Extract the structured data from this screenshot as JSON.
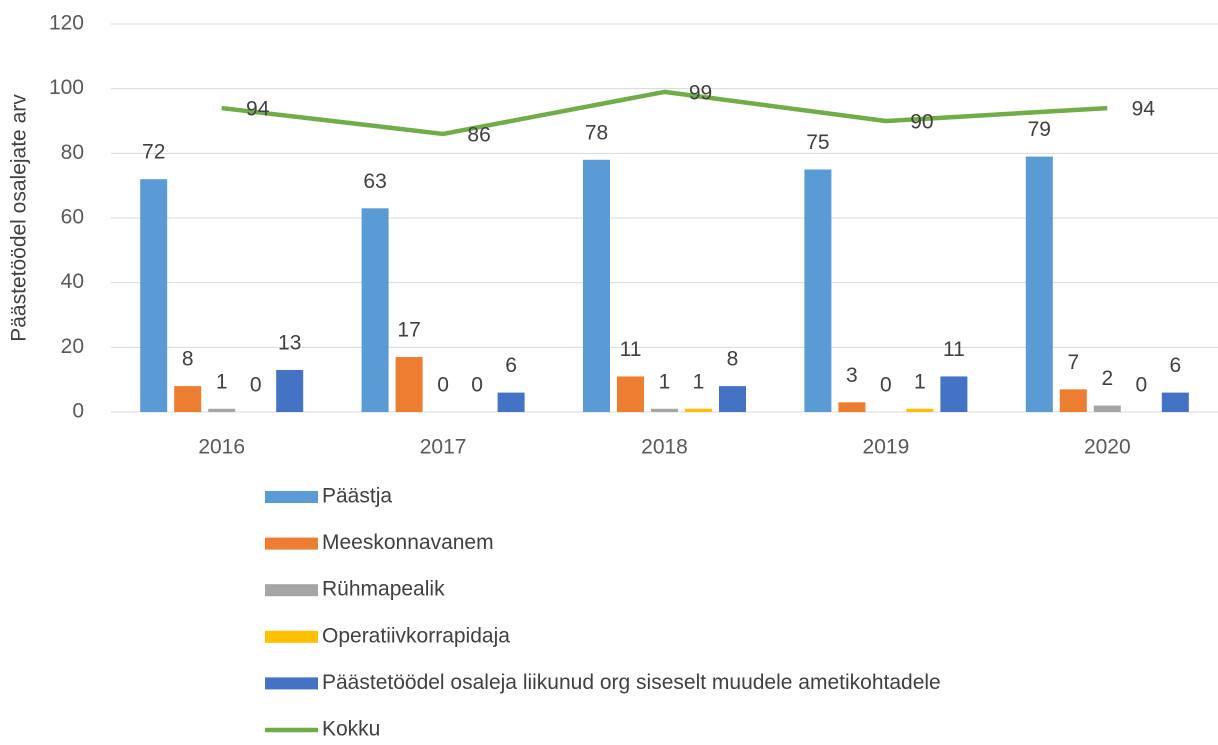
{
  "chart_data": {
    "type": "bar",
    "y_label": "Päästetöödel osalejate arv",
    "categories": [
      "2016",
      "2017",
      "2018",
      "2019",
      "2020"
    ],
    "series": [
      {
        "name": "Päästja",
        "color": "#5b9bd5",
        "values": [
          72,
          63,
          78,
          75,
          79
        ]
      },
      {
        "name": "Meeskonnavanem",
        "color": "#ed7d31",
        "values": [
          8,
          17,
          11,
          3,
          7
        ]
      },
      {
        "name": "Rühmapealik",
        "color": "#a5a5a5",
        "values": [
          1,
          0,
          1,
          0,
          2
        ]
      },
      {
        "name": "Operatiivkorrapidaja",
        "color": "#ffc000",
        "values": [
          0,
          0,
          1,
          1,
          0
        ]
      },
      {
        "name": "Päästetöödel osaleja liikunud org siseselt muudele ametikohtadele",
        "color": "#4472c4",
        "values": [
          13,
          6,
          8,
          11,
          6
        ]
      },
      {
        "name": "Kokku",
        "color": "#70ad47",
        "type": "line",
        "values": [
          94,
          86,
          99,
          90,
          94
        ]
      }
    ],
    "ylim": [
      0,
      120
    ],
    "yticks": [
      0,
      20,
      40,
      60,
      80,
      100,
      120
    ],
    "grid": true,
    "legend": "bottom"
  }
}
